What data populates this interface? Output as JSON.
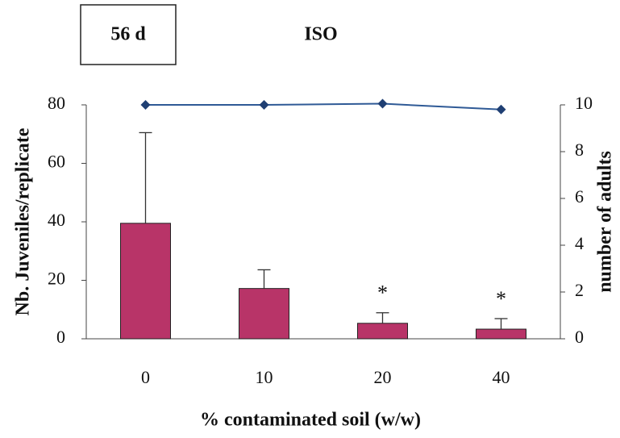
{
  "chart_data": {
    "type": "bar",
    "title": "ISO",
    "box_label": "56 d",
    "xlabel": "% contaminated soil (w/w)",
    "ylabel": "Nb. Juveniles/replicate",
    "y2label": "number of adults",
    "categories": [
      "0",
      "10",
      "20",
      "40"
    ],
    "series": [
      {
        "type": "bar",
        "color": "#b83468",
        "values": [
          39.5,
          17.2,
          5.3,
          3.3
        ],
        "errors": [
          31,
          6.4,
          3.6,
          3.6
        ]
      },
      {
        "type": "line",
        "axis": "y2",
        "color": "#2f5a96",
        "values": [
          10,
          10,
          10.05,
          9.8
        ]
      }
    ],
    "annotations": [
      null,
      null,
      "*",
      "*"
    ],
    "ylim": [
      0,
      80
    ],
    "yticks": [
      0,
      20,
      40,
      60,
      80
    ],
    "y2lim": [
      0,
      10
    ],
    "y2ticks": [
      0,
      2,
      4,
      6,
      8,
      10
    ]
  }
}
